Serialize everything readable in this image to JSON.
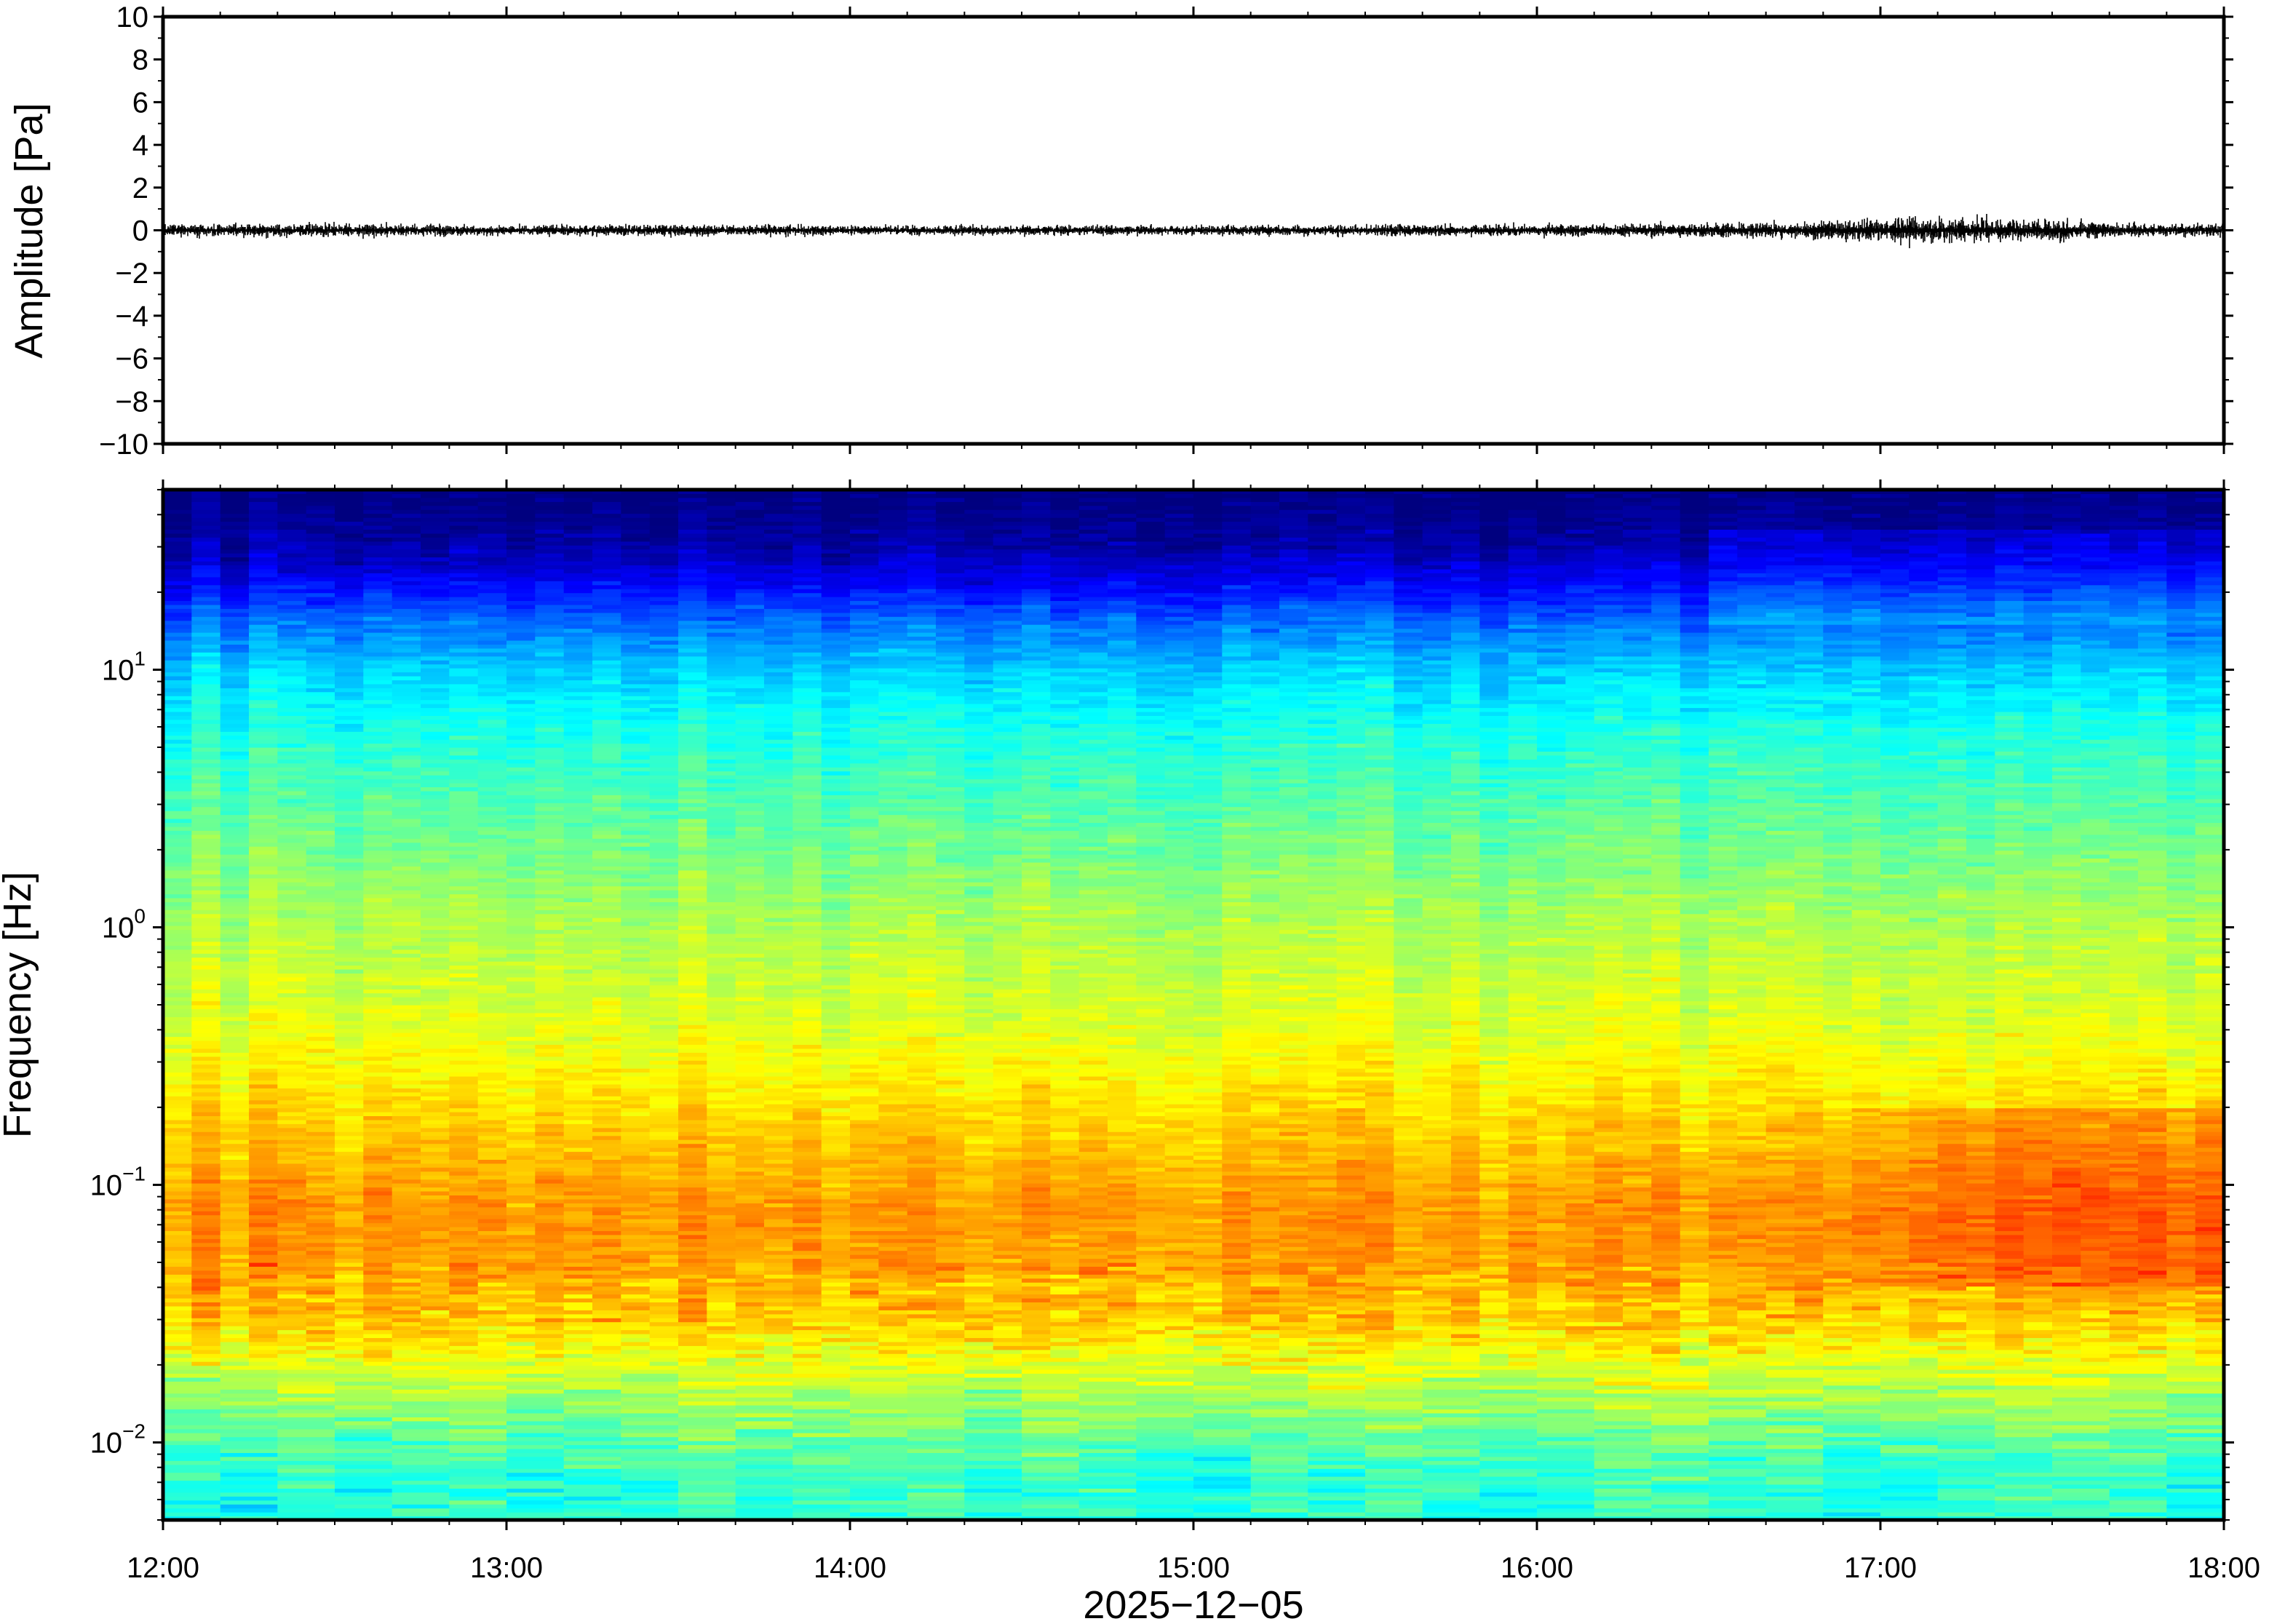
{
  "chart_data": [
    {
      "type": "line",
      "panel": "waveform",
      "ylabel": "Amplitude [Pa]",
      "ylim": [
        -10,
        10
      ],
      "yticks": [
        10,
        8,
        6,
        4,
        2,
        0,
        -2,
        -4,
        -6,
        -8,
        -10
      ],
      "ytick_labels": [
        "10",
        "8",
        "6",
        "4",
        "2",
        "0",
        "−2",
        "−4",
        "−6",
        "−8",
        "−10"
      ],
      "xlim": [
        "2025-12-05T12:00",
        "2025-12-05T18:00"
      ],
      "envelope": {
        "times_h": [
          12.0,
          12.5,
          13.0,
          13.5,
          14.0,
          14.5,
          15.0,
          15.5,
          16.0,
          16.5,
          16.75,
          17.0,
          17.25,
          17.5,
          17.75,
          18.0
        ],
        "amplitude_pa": [
          0.35,
          0.4,
          0.3,
          0.35,
          0.3,
          0.3,
          0.3,
          0.35,
          0.35,
          0.45,
          0.5,
          0.75,
          0.7,
          0.6,
          0.45,
          0.35
        ]
      },
      "line_color": "#000000"
    },
    {
      "type": "heatmap",
      "panel": "spectrogram",
      "ylabel": "Frequency [Hz]",
      "yscale": "log",
      "ylim": [
        0.005,
        50
      ],
      "yticks": [
        0.01,
        0.1,
        1,
        10
      ],
      "ytick_labels": [
        {
          "base": "10",
          "exp": "−2"
        },
        {
          "base": "10",
          "exp": "−1"
        },
        {
          "base": "10",
          "exp": "0"
        },
        {
          "base": "10",
          "exp": "1"
        }
      ],
      "xlabel": "2025−12−05",
      "xticks": [
        "12:00",
        "13:00",
        "14:00",
        "15:00",
        "16:00",
        "17:00",
        "18:00"
      ],
      "xlim": [
        "2025-12-05T12:00",
        "2025-12-05T18:00"
      ],
      "colormap": "jet",
      "colormap_stops": [
        "#00007f",
        "#0000ff",
        "#007fff",
        "#00ffff",
        "#7fff7f",
        "#ffff00",
        "#ff7f00",
        "#ff0000",
        "#7f0000"
      ],
      "relative_power_profile": {
        "frequency_hz": [
          0.005,
          0.008,
          0.012,
          0.02,
          0.03,
          0.05,
          0.08,
          0.12,
          0.2,
          0.4,
          1.0,
          3.0,
          6.0,
          10.0,
          15.0,
          22.0,
          30.0,
          50.0
        ],
        "level": [
          0.42,
          0.43,
          0.5,
          0.6,
          0.68,
          0.72,
          0.73,
          0.7,
          0.66,
          0.6,
          0.55,
          0.46,
          0.4,
          0.33,
          0.24,
          0.12,
          0.04,
          0.0
        ]
      },
      "late_period_enhancement": {
        "start_h": 16.75,
        "end_h": 18.0,
        "frequency_band_hz": [
          0.04,
          0.2
        ]
      }
    }
  ]
}
